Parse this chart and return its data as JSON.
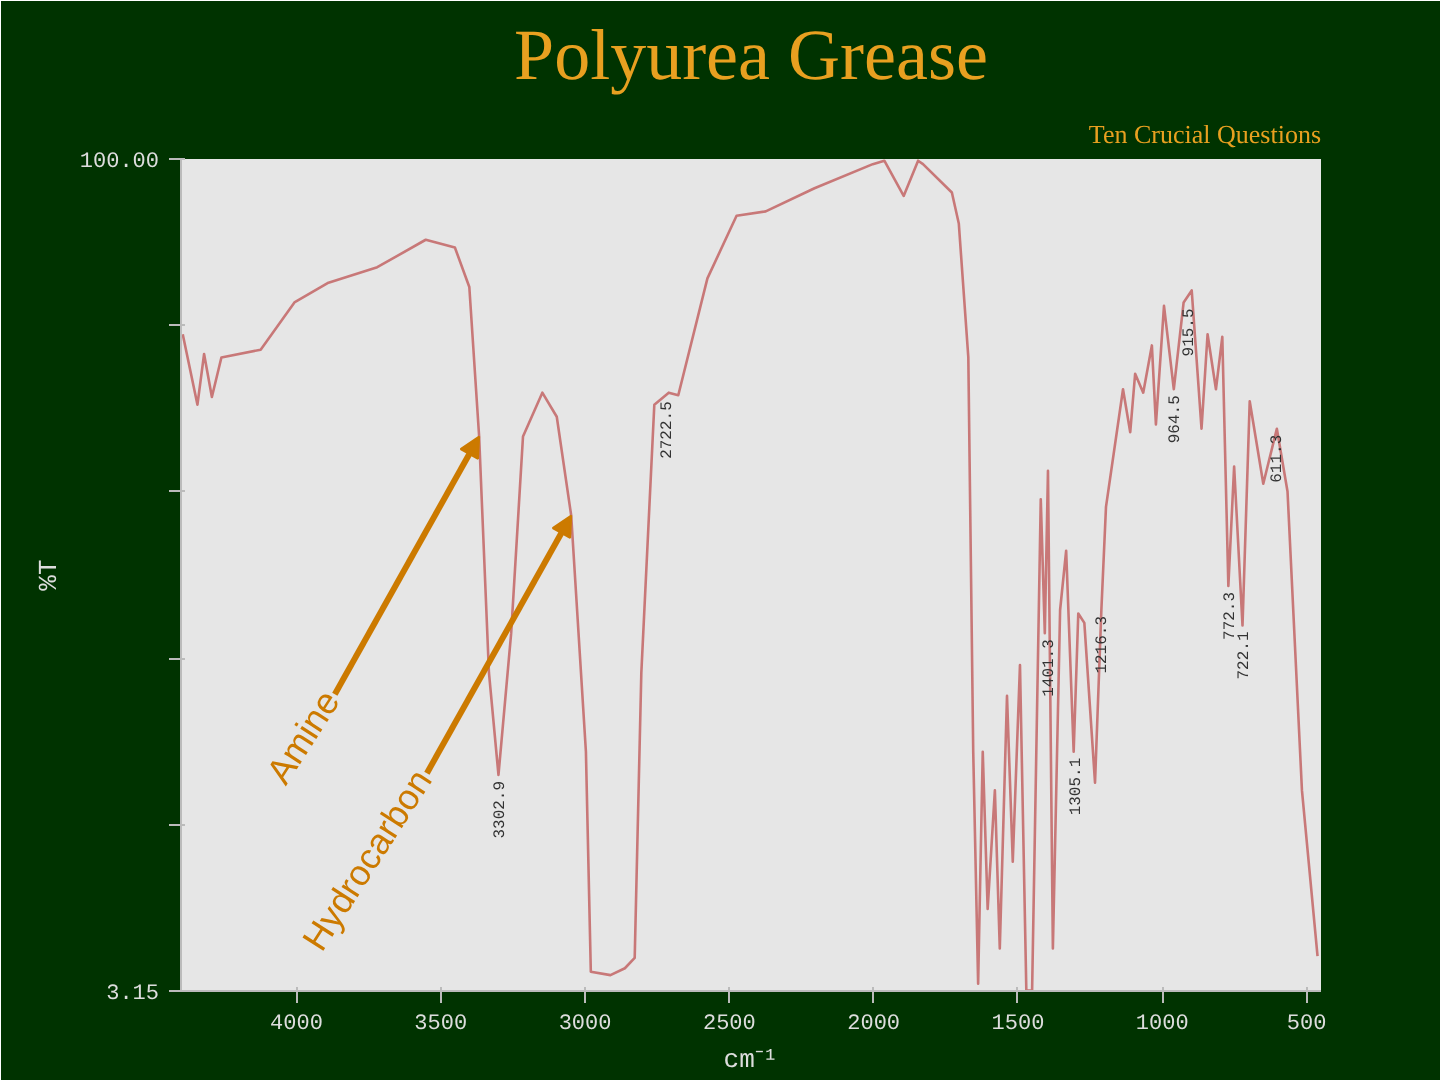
{
  "chart_data": {
    "type": "line",
    "title": "Polyurea Grease",
    "xlabel": "cm⁻¹",
    "ylabel": "%T",
    "x": [
      4394,
      4343,
      4320,
      4293,
      4260,
      4124,
      4007,
      3889,
      3720,
      3552,
      3451,
      3401,
      3367,
      3333,
      3300,
      3256,
      3215,
      3148,
      3098,
      3048,
      2997,
      2980,
      2912,
      2862,
      2828,
      2805,
      2760,
      2710,
      2677,
      2576,
      2475,
      2374,
      2205,
      2003,
      1963,
      1896,
      1846,
      1829,
      1729,
      1705,
      1672,
      1655,
      1638,
      1622,
      1605,
      1580,
      1563,
      1538,
      1518,
      1493,
      1471,
      1451,
      1421,
      1407,
      1396,
      1379,
      1354,
      1333,
      1307,
      1291,
      1270,
      1233,
      1211,
      1195,
      1136,
      1111,
      1094,
      1066,
      1036,
      1022,
      994,
      960,
      926,
      898,
      864,
      843,
      814,
      792,
      771,
      751,
      722,
      697,
      650,
      603,
      566,
      516,
      462
    ],
    "series": [
      {
        "color": "#c87878",
        "values": [
          79.6,
          71.4,
          77.3,
          72.3,
          76.9,
          77.8,
          83.3,
          85.6,
          87.4,
          90.6,
          89.7,
          85.1,
          67.7,
          40.2,
          28.3,
          44.8,
          67.7,
          72.8,
          70.0,
          58.5,
          31.0,
          5.4,
          5.0,
          5.8,
          7.0,
          40.2,
          71.4,
          72.8,
          72.5,
          86.1,
          93.4,
          93.9,
          96.6,
          99.4,
          99.8,
          95.7,
          99.8,
          99.4,
          96.1,
          92.5,
          76.9,
          31.0,
          4.0,
          31.0,
          12.7,
          26.5,
          8.1,
          37.5,
          18.2,
          41.1,
          3.2,
          3.2,
          60.4,
          44.8,
          63.7,
          8.1,
          47.5,
          54.4,
          31.0,
          47.1,
          46.0,
          27.4,
          47.5,
          59.5,
          73.2,
          68.2,
          75.0,
          72.8,
          78.3,
          69.1,
          82.9,
          73.2,
          83.3,
          84.7,
          68.6,
          79.6,
          73.2,
          79.3,
          50.3,
          64.2,
          45.7,
          71.8,
          62.2,
          68.6,
          61.3,
          26.5,
          7.2
        ]
      }
    ],
    "xlim": [
      4400,
      450
    ],
    "xticks": [
      4000,
      3500,
      3000,
      2500,
      2000,
      1500,
      1000,
      500
    ],
    "ylim": [
      3.15,
      100
    ],
    "yticks": [
      {
        "value": 100,
        "label": "100.00"
      },
      {
        "value": 80.63,
        "label": null
      },
      {
        "value": 61.26,
        "label": null
      },
      {
        "value": 41.89,
        "label": null
      },
      {
        "value": 22.52,
        "label": null
      },
      3.15
    ],
    "grid": false,
    "marker": "none",
    "line_style": "solid",
    "annotations": [
      "Ten Crucial Questions",
      {
        "text": "Amine",
        "x": 3367,
        "y": 67.7
      },
      {
        "text": "Hydrocarbon",
        "x": 3048,
        "y": 58.5
      },
      {
        "text": "3302.9",
        "x": 3300,
        "y": 28.3
      },
      {
        "text": "2722.5",
        "x": 2722,
        "y": 72.5
      },
      {
        "text": "1401.3",
        "x": 1401,
        "y": 44.8
      },
      {
        "text": "1305.1",
        "x": 1305,
        "y": 31.0
      },
      {
        "text": "1216.3",
        "x": 1216,
        "y": 47.5
      },
      {
        "text": "964.5",
        "x": 964,
        "y": 73.2
      },
      {
        "text": "915.5",
        "x": 915,
        "y": 83.3
      },
      {
        "text": "772.3",
        "x": 772,
        "y": 50.3
      },
      {
        "text": "722.1",
        "x": 722,
        "y": 45.7
      },
      {
        "text": "611.3",
        "x": 611,
        "y": 68.6
      }
    ]
  }
}
